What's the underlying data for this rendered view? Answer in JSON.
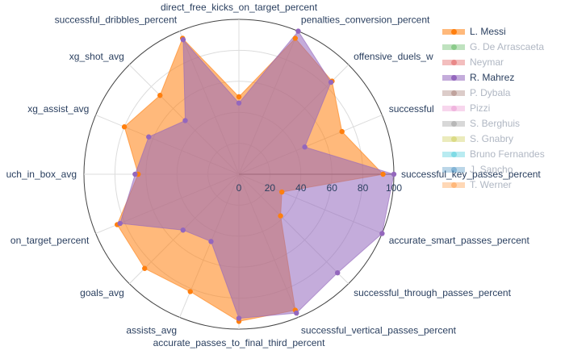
{
  "chart_data": {
    "type": "radar",
    "axes": [
      "direct_free_kicks_on_target_percent",
      "penalties_conversion_percent",
      "offensive_duels_won_percent",
      "successful_crosses_percent",
      "successful_key_passes_percent",
      "accurate_smart_passes_percent",
      "successful_through_passes_percent",
      "successful_vertical_passes_percent",
      "accurate_passes_to_final_third_percent",
      "assists_avg",
      "goals_avg",
      "shots_on_target_percent",
      "touch_in_box_avg",
      "xg_assist_avg",
      "xg_shot_avg",
      "successful_dribbles_percent"
    ],
    "axis_labels_shown": [
      "direct_free_kicks_on_target_percent",
      "penalties_conversion_percent",
      "offensive_duels_w",
      "successful",
      "successful_key_passes_percent",
      "accurate_smart_passes_percent",
      "successful_through_passes_percent",
      "successful_vertical_passes_percent",
      "accurate_passes_to_final_third_percent",
      "assists_avg",
      "goals_avg",
      "on_target_percent",
      "uch_in_box_avg",
      "xg_assist_avg",
      "xg_shot_avg",
      "successful_dribbles_percent"
    ],
    "radial_range": [
      0,
      100
    ],
    "radial_ticks": [
      "0",
      "20",
      "40",
      "60",
      "80",
      "100"
    ],
    "series": [
      {
        "name": "L. Messi",
        "color": "#ff7f0e",
        "visible": true,
        "values": [
          50,
          95,
          85,
          72,
          93,
          30,
          38,
          95,
          95,
          82,
          86,
          85,
          65,
          80,
          72,
          95
        ]
      },
      {
        "name": "R. Mahrez",
        "color": "#9467bd",
        "visible": true,
        "values": [
          46,
          100,
          84,
          46,
          100,
          100,
          90,
          97,
          93,
          47,
          51,
          83,
          67,
          63,
          49,
          94
        ]
      }
    ],
    "legend": [
      {
        "name": "L. Messi",
        "color": "#ff7f0e",
        "visible": true
      },
      {
        "name": "G. De Arrascaeta",
        "color": "#2ca02c",
        "visible": false
      },
      {
        "name": "Neymar",
        "color": "#d62728",
        "visible": false
      },
      {
        "name": "R. Mahrez",
        "color": "#9467bd",
        "visible": true
      },
      {
        "name": "P. Dybala",
        "color": "#8c564b",
        "visible": false
      },
      {
        "name": "Pizzi",
        "color": "#e377c2",
        "visible": false
      },
      {
        "name": "S. Berghuis",
        "color": "#7f7f7f",
        "visible": false
      },
      {
        "name": "S. Gnabry",
        "color": "#bcbd22",
        "visible": false
      },
      {
        "name": "Bruno Fernandes",
        "color": "#17becf",
        "visible": false
      },
      {
        "name": "J. Sancho",
        "color": "#1f77b4",
        "visible": false
      },
      {
        "name": "T. Werner",
        "color": "#ff7f0e",
        "visible": false
      }
    ],
    "legend_placement": "top-right",
    "grid": true
  }
}
